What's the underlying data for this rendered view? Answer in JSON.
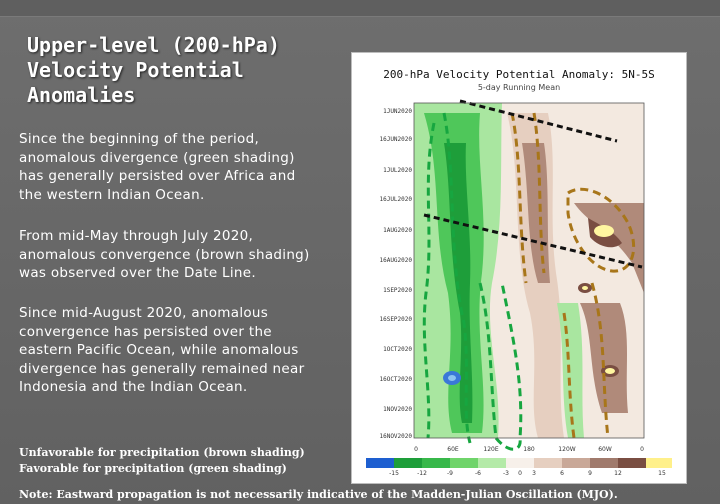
{
  "slide": {
    "title_lines": [
      "Upper-level (200-hPa)",
      "Velocity Potential",
      "Anomalies"
    ],
    "paragraph1_lines": [
      "Since the beginning of the period,",
      "anomalous divergence (green shading)",
      "has generally persisted over Africa and",
      "the western Indian Ocean."
    ],
    "paragraph2_lines": [
      "From mid-May through July 2020,",
      "anomalous convergence (brown shading)",
      "was observed over the Date Line."
    ],
    "paragraph3_lines": [
      "Since mid-August 2020, anomalous",
      "convergence has persisted over the",
      "eastern Pacific Ocean, while anomalous",
      "divergence has generally remained near",
      "Indonesia and the Indian Ocean."
    ],
    "legend_lines": [
      "Unfavorable for precipitation (brown shading)",
      "Favorable for precipitation (green shading)"
    ],
    "note": "Note: Eastward propagation is not necessarily indicative of the Madden-Julian Oscillation (MJO)."
  },
  "figure": {
    "title": "200-hPa Velocity Potential Anomaly: 5N-5S",
    "subtitle": "5-day Running Mean",
    "y_labels": [
      "1JUN2020",
      "16JUN2020",
      "1JUL2020",
      "16JUL2020",
      "1AUG2020",
      "16AUG2020",
      "1SEP2020",
      "16SEP2020",
      "1OCT2020",
      "16OCT2020",
      "1NOV2020",
      "16NOV2020"
    ],
    "x_labels": [
      "0",
      "60E",
      "120E",
      "180",
      "120W",
      "60W",
      "0"
    ],
    "colorbar_labels": [
      "-15",
      "-12",
      "-9",
      "-6",
      "-3",
      "0",
      "3",
      "6",
      "9",
      "12",
      "15"
    ],
    "colors": {
      "green_dark": "#1e9e3a",
      "green_mid": "#4fc75a",
      "green_light": "#a9e6a0",
      "neutral": "#f3e9e0",
      "brown_light": "#e6cfc0",
      "brown_mid": "#b08a7a",
      "brown_dark": "#7a4e42",
      "yellow": "#fff6a0",
      "blue": "#3a78d8",
      "contour_green": "#17a640",
      "contour_brown": "#a8761a"
    }
  }
}
